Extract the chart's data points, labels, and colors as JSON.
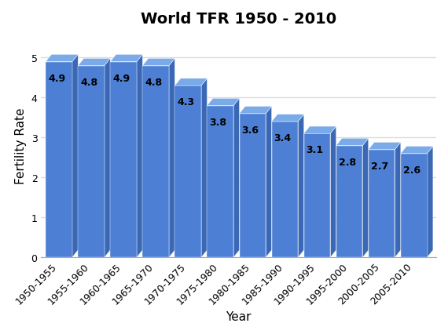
{
  "title": "World TFR 1950 - 2010",
  "xlabel": "Year",
  "ylabel": "Fertility Rate",
  "categories": [
    "1950-1955",
    "1955-1960",
    "1960-1965",
    "1965-1970",
    "1970-1975",
    "1975-1980",
    "1980-1985",
    "1985-1990",
    "1990-1995",
    "1995-2000",
    "2000-2005",
    "2005-2010"
  ],
  "values": [
    4.9,
    4.8,
    4.9,
    4.8,
    4.3,
    3.8,
    3.6,
    3.4,
    3.1,
    2.8,
    2.7,
    2.6
  ],
  "bar_color": "#4d7fd4",
  "side_color": "#3a68b5",
  "top_color": "#7aaae8",
  "ylim": [
    0,
    5.6
  ],
  "yticks": [
    0,
    1,
    2,
    3,
    4,
    5
  ],
  "title_fontsize": 14,
  "label_fontsize": 11,
  "tick_fontsize": 9,
  "annotation_fontsize": 9,
  "background_color": "#ffffff",
  "grid_color": "#dddddd"
}
